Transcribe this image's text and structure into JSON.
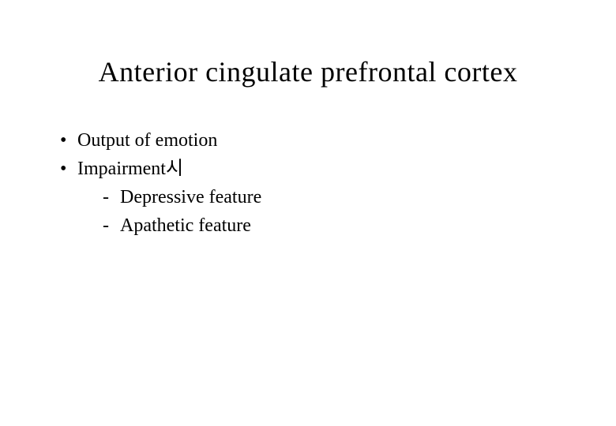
{
  "slide": {
    "title": "Anterior cingulate prefrontal cortex",
    "bullets": [
      {
        "text": "Output of emotion"
      },
      {
        "text": "Impairment시"
      }
    ],
    "subBullets": [
      {
        "text": "Depressive feature"
      },
      {
        "text": "Apathetic feature"
      }
    ]
  },
  "style": {
    "background_color": "#ffffff",
    "text_color": "#000000",
    "title_fontsize": 36,
    "body_fontsize": 24,
    "font_family": "Times New Roman"
  }
}
